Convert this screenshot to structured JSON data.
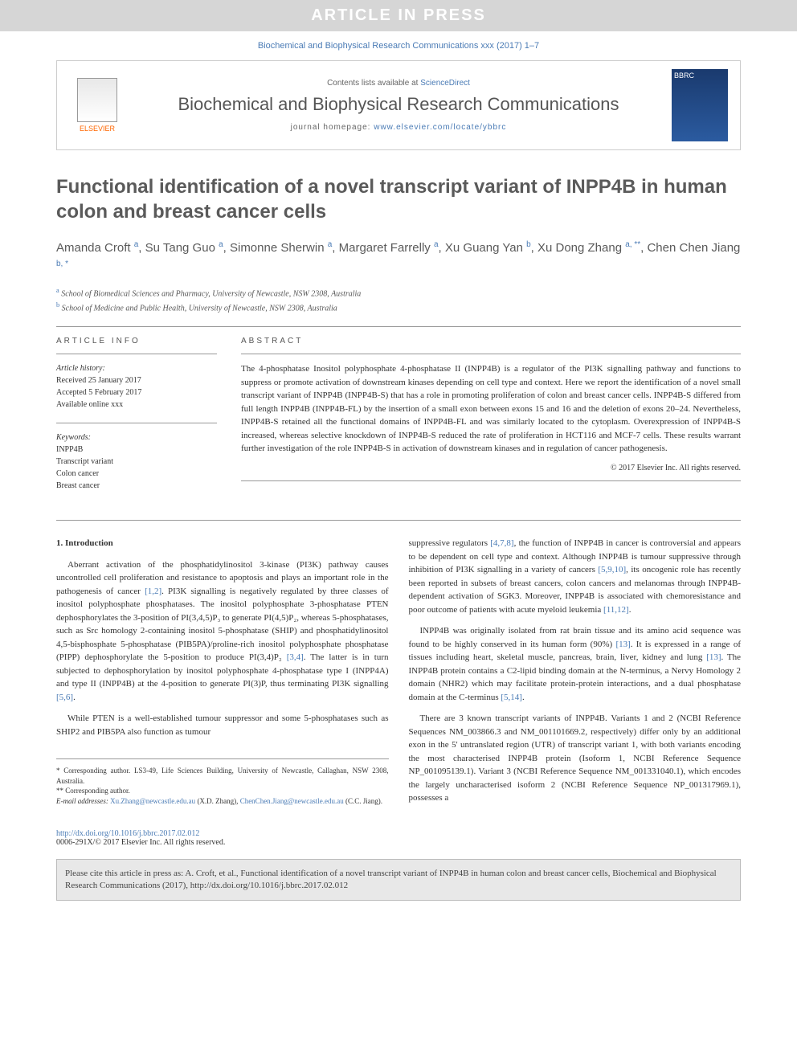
{
  "banner": "ARTICLE IN PRESS",
  "topCitation": "Biochemical and Biophysical Research Communications xxx (2017) 1–7",
  "header": {
    "contentsPrefix": "Contents lists available at ",
    "contentsLink": "ScienceDirect",
    "journalName": "Biochemical and Biophysical Research Communications",
    "homepagePrefix": "journal homepage: ",
    "homepageUrl": "www.elsevier.com/locate/ybbrc",
    "publisherName": "ELSEVIER",
    "coverLabel": "BBRC"
  },
  "title": "Functional identification of a novel transcript variant of INPP4B in human colon and breast cancer cells",
  "authorsHtml": "Amanda Croft <sup>a</sup>, Su Tang Guo <sup>a</sup>, Simonne Sherwin <sup>a</sup>, Margaret Farrelly <sup>a</sup>, Xu Guang Yan <sup>b</sup>, Xu Dong Zhang <sup>a, **</sup>, Chen Chen Jiang <sup>b, *</sup>",
  "affiliations": {
    "a": "School of Biomedical Sciences and Pharmacy, University of Newcastle, NSW 2308, Australia",
    "b": "School of Medicine and Public Health, University of Newcastle, NSW 2308, Australia"
  },
  "articleInfo": {
    "heading": "ARTICLE INFO",
    "historyLabel": "Article history:",
    "received": "Received 25 January 2017",
    "accepted": "Accepted 5 February 2017",
    "available": "Available online xxx",
    "keywordsLabel": "Keywords:",
    "keywords": [
      "INPP4B",
      "Transcript variant",
      "Colon cancer",
      "Breast cancer"
    ]
  },
  "abstract": {
    "heading": "ABSTRACT",
    "text": "The 4-phosphatase Inositol polyphosphate 4-phosphatase II (INPP4B) is a regulator of the PI3K signalling pathway and functions to suppress or promote activation of downstream kinases depending on cell type and context. Here we report the identification of a novel small transcript variant of INPP4B (INPP4B-S) that has a role in promoting proliferation of colon and breast cancer cells. INPP4B-S differed from full length INPP4B (INPP4B-FL) by the insertion of a small exon between exons 15 and 16 and the deletion of exons 20–24. Nevertheless, INPP4B-S retained all the functional domains of INPP4B-FL and was similarly located to the cytoplasm. Overexpression of INPP4B-S increased, whereas selective knockdown of INPP4B-S reduced the rate of proliferation in HCT116 and MCF-7 cells. These results warrant further investigation of the role INPP4B-S in activation of downstream kinases and in regulation of cancer pathogenesis.",
    "copyright": "© 2017 Elsevier Inc. All rights reserved."
  },
  "sections": {
    "introHeading": "1. Introduction",
    "col1p1": "Aberrant activation of the phosphatidylinositol 3-kinase (PI3K) pathway causes uncontrolled cell proliferation and resistance to apoptosis and plays an important role in the pathogenesis of cancer [1,2]. PI3K signalling is negatively regulated by three classes of inositol polyphosphate phosphatases. The inositol polyphosphate 3-phosphatase PTEN dephosphorylates the 3-position of PI(3,4,5)P₃ to generate PI(4,5)P₂, whereas 5-phosphatases, such as Src homology 2-containing inositol 5-phosphatase (SHIP) and phosphatidylinositol 4,5-bisphosphate 5-phosphatase (PIB5PA)/proline-rich inositol polyphosphate phosphatase (PIPP) dephosphorylate the 5-position to produce PI(3,4)P₂ [3,4]. The latter is in turn subjected to dephosphorylation by inositol polyphosphate 4-phosphatase type I (INPP4A) and type II (INPP4B) at the 4-position to generate PI(3)P, thus terminating PI3K signalling [5,6].",
    "col1p2": "While PTEN is a well-established tumour suppressor and some 5-phosphatases such as SHIP2 and PIB5PA also function as tumour",
    "col2p1": "suppressive regulators [4,7,8], the function of INPP4B in cancer is controversial and appears to be dependent on cell type and context. Although INPP4B is tumour suppressive through inhibition of PI3K signalling in a variety of cancers [5,9,10], its oncogenic role has recently been reported in subsets of breast cancers, colon cancers and melanomas through INPP4B-dependent activation of SGK3. Moreover, INPP4B is associated with chemoresistance and poor outcome of patients with acute myeloid leukemia [11,12].",
    "col2p2": "INPP4B was originally isolated from rat brain tissue and its amino acid sequence was found to be highly conserved in its human form (90%) [13]. It is expressed in a range of tissues including heart, skeletal muscle, pancreas, brain, liver, kidney and lung [13]. The INPP4B protein contains a C2-lipid binding domain at the N-terminus, a Nervy Homology 2 domain (NHR2) which may facilitate protein-protein interactions, and a dual phosphatase domain at the C-terminus [5,14].",
    "col2p3": "There are 3 known transcript variants of INPP4B. Variants 1 and 2 (NCBI Reference Sequences NM_003866.3 and NM_001101669.2, respectively) differ only by an additional exon in the 5' untranslated region (UTR) of transcript variant 1, with both variants encoding the most characterised INPP4B protein (Isoform 1, NCBI Reference Sequence NP_001095139.1). Variant 3 (NCBI Reference Sequence NM_001331040.1), which encodes the largely uncharacterised isoform 2 (NCBI Reference Sequence NP_001317969.1), possesses a"
  },
  "footnotes": {
    "corr1": "* Corresponding author. LS3-49, Life Sciences Building, University of Newcastle, Callaghan, NSW 2308, Australia.",
    "corr2": "** Corresponding author.",
    "emailLabel": "E-mail addresses:",
    "email1": "Xu.Zhang@newcastle.edu.au",
    "email1who": " (X.D. Zhang), ",
    "email2": "ChenChen.Jiang@newcastle.edu.au",
    "email2who": " (C.C. Jiang)."
  },
  "doi": {
    "url": "http://dx.doi.org/10.1016/j.bbrc.2017.02.012",
    "line2": "0006-291X/© 2017 Elsevier Inc. All rights reserved."
  },
  "citeBox": "Please cite this article in press as: A. Croft, et al., Functional identification of a novel transcript variant of INPP4B in human colon and breast cancer cells, Biochemical and Biophysical Research Communications (2017), http://dx.doi.org/10.1016/j.bbrc.2017.02.012",
  "colors": {
    "link": "#4a7bb5",
    "bannerBg": "#d6d6d6",
    "orange": "#ff6600"
  }
}
